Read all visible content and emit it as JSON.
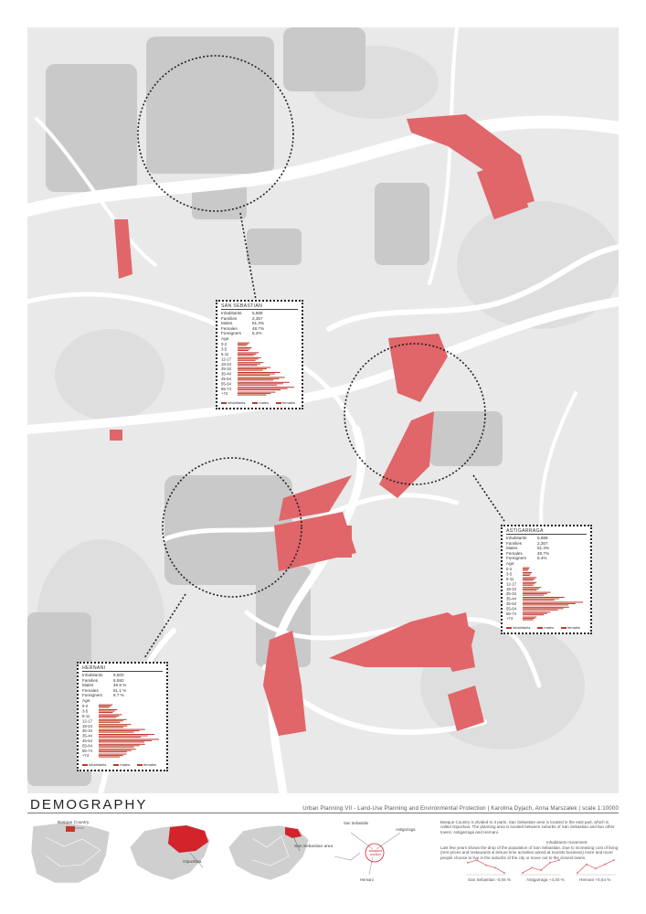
{
  "title": "DEMOGRAPHY",
  "subtitle": "Urban Planning VII - Land-Use Planning and Environmental Protection | Karolina Dyjach, Anna Marszałek | scale 1:10000",
  "colors": {
    "accent": "#e0666a",
    "accent_dark": "#c0392b",
    "map_bg": "#e9e9e9",
    "road": "#ffffff",
    "building": "#c6c6c6"
  },
  "legend": [
    "inhabitants",
    "males",
    "females"
  ],
  "field_labels": [
    "Inhabitants",
    "Families",
    "Males",
    "Females",
    "Foreigners",
    "Age:"
  ],
  "age_groups": [
    "0-2",
    "3-5",
    "6-11",
    "12-17",
    "18-24",
    "25-34",
    "35-44",
    "45-54",
    "55-64",
    "65-74",
    "+74"
  ],
  "panels": [
    {
      "id": "san-sebastian",
      "name": "SAN SEBASTIAN",
      "values": [
        "5,688",
        "2,357",
        "51.3%",
        "48.7%",
        "5.4%"
      ],
      "age_values": [
        2.5,
        3,
        4.5,
        5,
        5.5,
        7,
        9,
        10,
        11,
        12,
        8
      ]
    },
    {
      "id": "astigarraga",
      "name": "ASTIGARRAGA",
      "values": [
        "5,688",
        "2,357",
        "51.3%",
        "48.7%",
        "5.4%"
      ],
      "age_values": [
        1.5,
        2,
        3,
        3,
        4,
        6,
        9,
        13,
        10,
        6,
        3
      ]
    },
    {
      "id": "hernani",
      "name": "HERNANI",
      "values": [
        "9,600",
        "8,592",
        "48.9 %",
        "51.1 %",
        "6.7 %"
      ],
      "age_values": [
        3,
        4,
        5,
        6,
        7,
        10,
        12,
        13,
        10,
        8,
        6
      ]
    }
  ],
  "locator": {
    "basque_country": "Basque Country",
    "gipuzkoa": "Gipuzkoa",
    "san_sebastian_area": "San Sebastian area",
    "diagram": {
      "san_sebastian": "San Sebastián",
      "astigarraga": "Astigarraga",
      "hernani": "Hernani",
      "center_label": "analysed section"
    }
  },
  "description": "Basque Country is divided to 3 parts. San Sebastian area is located in the east part, which is called Gipuzkoa. The planning area is located between suburbs of San Sebastian and two other towns: Astigarraga and Hernani.",
  "movement": {
    "title": "Inhabitants movement:",
    "text": "Last few years shows the drop of the population of San Sebastian. Due to increasing cost of living (rent prices and restaurants & leisure time activities aimed at tourists business) more and more people choose to live in the suburbs of the city or move out to the closest towns.",
    "trends": [
      {
        "name": "San Sebastian",
        "value": "-0,06 %",
        "series": [
          5,
          6,
          4,
          3,
          1
        ]
      },
      {
        "name": "Astigarraga",
        "value": "+4,40 %",
        "series": [
          1,
          3,
          2,
          5,
          6
        ]
      },
      {
        "name": "Hernani",
        "value": "+0,54 %",
        "series": [
          2,
          4,
          3,
          4,
          5
        ]
      }
    ]
  }
}
